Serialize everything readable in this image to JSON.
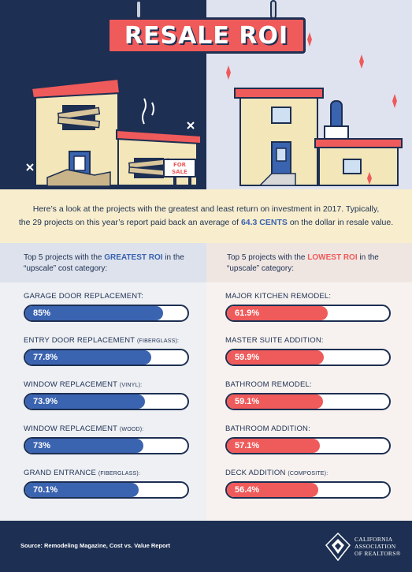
{
  "title": "RESALE ROI",
  "intro": {
    "line1": "Here’s a look at the projects with the greatest and least return on investment in 2017. Typically,",
    "line2_pre": "the 29 projects on this year’s report paid back an average of ",
    "line2_highlight": "64.3 CENTS",
    "line2_post": " on the dollar in resale value."
  },
  "sale_sign": {
    "line1": "FOR",
    "line2": "SALE"
  },
  "left_column": {
    "head_pre": "Top 5 projects with the ",
    "head_highlight": "GREATEST ROI",
    "head_post": " in the",
    "head_line2": "“upscale” cost category:"
  },
  "right_column": {
    "head_pre": "Top 5 projects with the ",
    "head_highlight": "LOWEST ROI",
    "head_post": " in the",
    "head_line2": "“upscale” category:"
  },
  "chart_data": [
    {
      "type": "bar",
      "title": "Top 5 projects with the GREATEST ROI in the “upscale” cost category:",
      "categories": [
        {
          "label": "GARAGE DOOR REPLACEMENT:",
          "sub": ""
        },
        {
          "label": "ENTRY DOOR REPLACEMENT",
          "sub": "(FIBERGLASS):"
        },
        {
          "label": "WINDOW REPLACEMENT",
          "sub": "(VINYL):"
        },
        {
          "label": "WINDOW REPLACEMENT",
          "sub": "(WOOD):"
        },
        {
          "label": "GRAND ENTRANCE",
          "sub": "(FIBERGLASS):"
        }
      ],
      "values": [
        85,
        77.8,
        73.9,
        73,
        70.1
      ],
      "value_labels": [
        "85%",
        "77.8%",
        "73.9%",
        "73%",
        "70.1%"
      ],
      "color": "#3a63b0",
      "xlim": [
        0,
        100
      ]
    },
    {
      "type": "bar",
      "title": "Top 5 projects with the LOWEST ROI in the “upscale” category:",
      "categories": [
        {
          "label": "MAJOR KITCHEN REMODEL:",
          "sub": ""
        },
        {
          "label": "MASTER SUITE ADDITION:",
          "sub": ""
        },
        {
          "label": "BATHROOM REMODEL:",
          "sub": ""
        },
        {
          "label": "BATHROOM ADDITION:",
          "sub": ""
        },
        {
          "label": "DECK ADDITION",
          "sub": "(COMPOSITE):"
        }
      ],
      "values": [
        61.9,
        59.9,
        59.1,
        57.1,
        56.4
      ],
      "value_labels": [
        "61.9%",
        "59.9%",
        "59.1%",
        "57.1%",
        "56.4%"
      ],
      "color": "#ef5a5a",
      "xlim": [
        0,
        100
      ]
    }
  ],
  "footer": {
    "source": "Source: Remodeling Magazine, Cost vs. Value Report",
    "logo_line1": "CALIFORNIA",
    "logo_line2": "ASSOCIATION",
    "logo_line3": "OF REALTORS®"
  }
}
